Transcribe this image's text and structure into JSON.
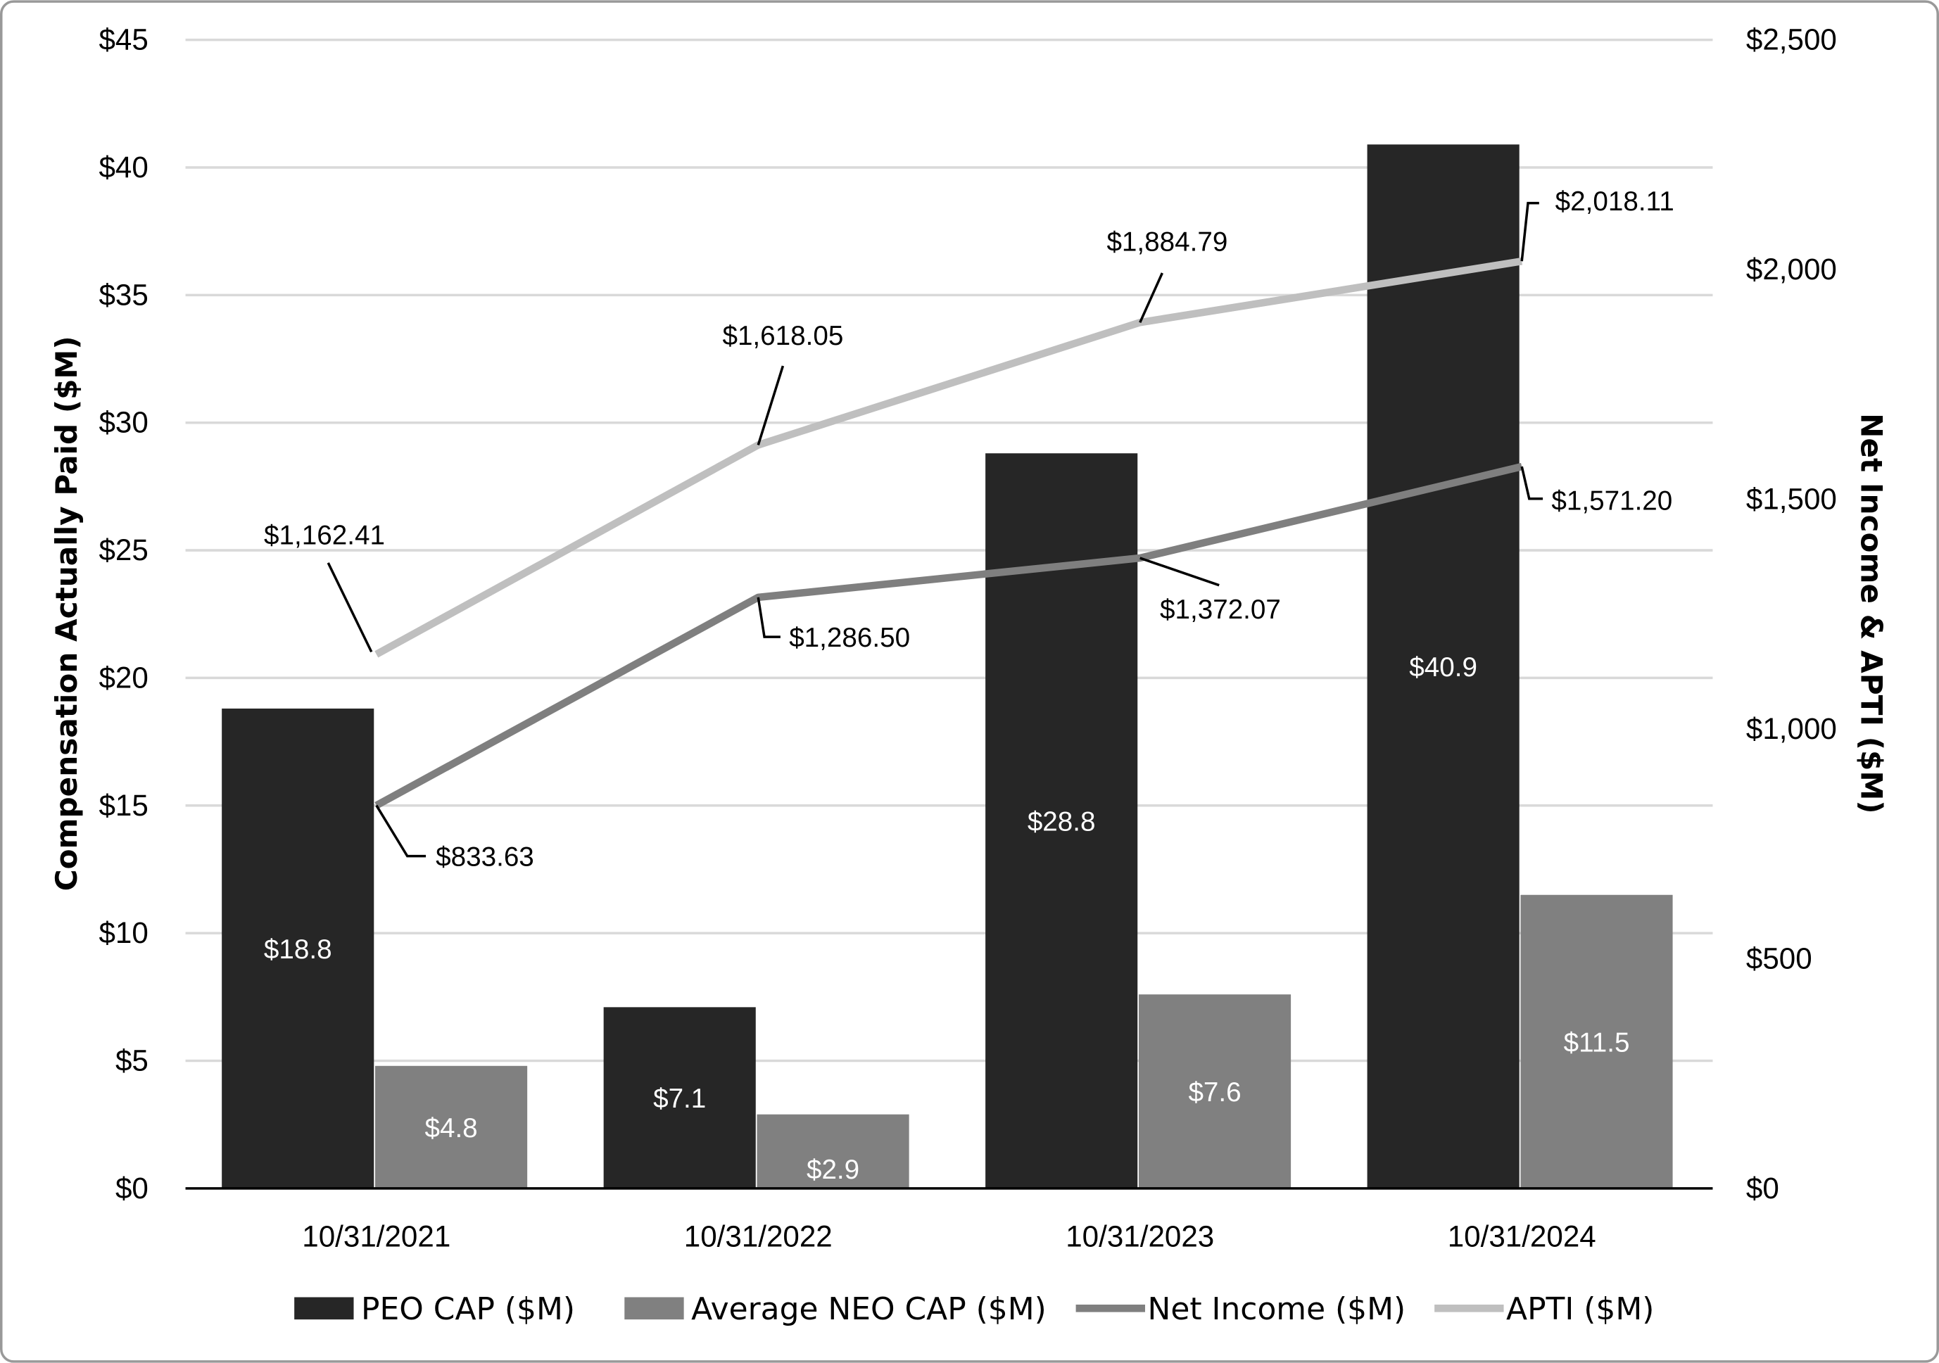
{
  "chart_data": {
    "type": "bar",
    "categories": [
      "10/31/2021",
      "10/31/2022",
      "10/31/2023",
      "10/31/2024"
    ],
    "y_left": {
      "label": "Compensation Actually Paid ($M)",
      "range": [
        0,
        45
      ],
      "ticks": [
        0,
        5,
        10,
        15,
        20,
        25,
        30,
        35,
        40,
        45
      ],
      "tick_labels": [
        "$0",
        "$5",
        "$10",
        "$15",
        "$20",
        "$25",
        "$30",
        "$35",
        "$40",
        "$45"
      ]
    },
    "y_right": {
      "label": "Net Income & APTI ($M)",
      "range": [
        0,
        2500
      ],
      "ticks": [
        0,
        500,
        1000,
        1500,
        2000,
        2500
      ],
      "tick_labels": [
        "$0",
        "$500",
        "$1,000",
        "$1,500",
        "$2,000",
        "$2,500"
      ]
    },
    "grid": true,
    "legend_position": "bottom",
    "series": [
      {
        "name": "PEO CAP ($M)",
        "type": "bar",
        "axis": "left",
        "color": "#262626",
        "values": [
          18.8,
          7.1,
          28.8,
          40.9
        ],
        "labels": [
          "$18.8",
          "$7.1",
          "$28.8",
          "$40.9"
        ]
      },
      {
        "name": "Average NEO CAP ($M)",
        "type": "bar",
        "axis": "left",
        "color": "#808080",
        "values": [
          4.8,
          2.9,
          7.6,
          11.5
        ],
        "labels": [
          "$4.8",
          "$2.9",
          "$7.6",
          "$11.5"
        ]
      },
      {
        "name": "Net Income ($M)",
        "type": "line",
        "axis": "right",
        "color": "#7f7f7f",
        "values": [
          833.63,
          1286.5,
          1372.07,
          1571.2
        ],
        "labels": [
          "$833.63",
          "$1,286.50",
          "$1,372.07",
          "$1,571.20"
        ]
      },
      {
        "name": "APTI ($M)",
        "type": "line",
        "axis": "right",
        "color": "#bfbfbf",
        "values": [
          1162.41,
          1618.05,
          1884.79,
          2018.11
        ],
        "labels": [
          "$1,162.41",
          "$1,618.05",
          "$1,884.79",
          "$2,018.11"
        ]
      }
    ]
  }
}
